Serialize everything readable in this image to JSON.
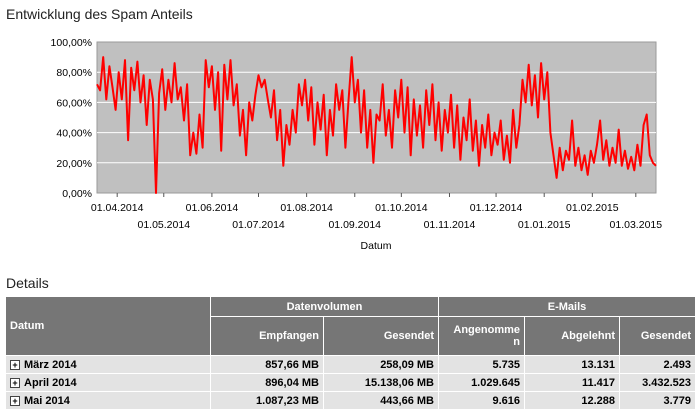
{
  "chart_title": "Entwicklung des Spam Anteils",
  "details_title": "Details",
  "chart_data": {
    "type": "line",
    "title": "Entwicklung des Spam Anteils",
    "xlabel": "Datum",
    "ylabel": "",
    "ylim": [
      0,
      100
    ],
    "y_ticks": [
      "0,00%",
      "20,00%",
      "40,00%",
      "60,00%",
      "80,00%",
      "100,00%"
    ],
    "x_ticks": [
      "01.04.2014",
      "01.05.2014",
      "01.06.2014",
      "01.07.2014",
      "01.08.2014",
      "01.09.2014",
      "01.10.2014",
      "01.11.2014",
      "01.12.2014",
      "01.01.2015",
      "01.02.2015",
      "01.03.2015"
    ],
    "x_range": [
      "2014-03-19",
      "2015-03-14"
    ],
    "grid": true,
    "colors": {
      "line": "#ff0000",
      "plot_bg": "#c0c0c0",
      "grid": "#ffffff"
    },
    "series": [
      {
        "values": [
          [
            "2014-03-19",
            72
          ],
          [
            "2014-03-21",
            68
          ],
          [
            "2014-03-23",
            90
          ],
          [
            "2014-03-25",
            62
          ],
          [
            "2014-03-27",
            84
          ],
          [
            "2014-03-29",
            70
          ],
          [
            "2014-03-31",
            55
          ],
          [
            "2014-04-02",
            80
          ],
          [
            "2014-04-04",
            62
          ],
          [
            "2014-04-06",
            88
          ],
          [
            "2014-04-08",
            35
          ],
          [
            "2014-04-10",
            83
          ],
          [
            "2014-04-12",
            68
          ],
          [
            "2014-04-14",
            87
          ],
          [
            "2014-04-16",
            60
          ],
          [
            "2014-04-18",
            78
          ],
          [
            "2014-04-20",
            45
          ],
          [
            "2014-04-22",
            75
          ],
          [
            "2014-04-24",
            62
          ],
          [
            "2014-04-26",
            0
          ],
          [
            "2014-04-28",
            66
          ],
          [
            "2014-04-30",
            82
          ],
          [
            "2014-05-02",
            55
          ],
          [
            "2014-05-04",
            75
          ],
          [
            "2014-05-06",
            60
          ],
          [
            "2014-05-08",
            86
          ],
          [
            "2014-05-10",
            62
          ],
          [
            "2014-05-12",
            70
          ],
          [
            "2014-05-14",
            48
          ],
          [
            "2014-05-16",
            72
          ],
          [
            "2014-05-18",
            25
          ],
          [
            "2014-05-20",
            40
          ],
          [
            "2014-05-22",
            26
          ],
          [
            "2014-05-24",
            52
          ],
          [
            "2014-05-26",
            30
          ],
          [
            "2014-05-28",
            88
          ],
          [
            "2014-05-30",
            70
          ],
          [
            "2014-06-01",
            84
          ],
          [
            "2014-06-03",
            55
          ],
          [
            "2014-06-05",
            80
          ],
          [
            "2014-06-07",
            28
          ],
          [
            "2014-06-09",
            85
          ],
          [
            "2014-06-11",
            62
          ],
          [
            "2014-06-13",
            88
          ],
          [
            "2014-06-15",
            58
          ],
          [
            "2014-06-17",
            72
          ],
          [
            "2014-06-19",
            38
          ],
          [
            "2014-06-21",
            55
          ],
          [
            "2014-06-23",
            25
          ],
          [
            "2014-06-25",
            60
          ],
          [
            "2014-06-27",
            48
          ],
          [
            "2014-06-29",
            65
          ],
          [
            "2014-07-01",
            78
          ],
          [
            "2014-07-03",
            70
          ],
          [
            "2014-07-05",
            75
          ],
          [
            "2014-07-07",
            62
          ],
          [
            "2014-07-09",
            50
          ],
          [
            "2014-07-11",
            68
          ],
          [
            "2014-07-13",
            35
          ],
          [
            "2014-07-15",
            55
          ],
          [
            "2014-07-17",
            18
          ],
          [
            "2014-07-19",
            45
          ],
          [
            "2014-07-21",
            32
          ],
          [
            "2014-07-23",
            55
          ],
          [
            "2014-07-25",
            40
          ],
          [
            "2014-07-27",
            72
          ],
          [
            "2014-07-29",
            58
          ],
          [
            "2014-07-31",
            75
          ],
          [
            "2014-08-02",
            48
          ],
          [
            "2014-08-04",
            70
          ],
          [
            "2014-08-06",
            32
          ],
          [
            "2014-08-08",
            60
          ],
          [
            "2014-08-10",
            42
          ],
          [
            "2014-08-12",
            65
          ],
          [
            "2014-08-14",
            25
          ],
          [
            "2014-08-16",
            55
          ],
          [
            "2014-08-18",
            38
          ],
          [
            "2014-08-20",
            72
          ],
          [
            "2014-08-22",
            55
          ],
          [
            "2014-08-24",
            68
          ],
          [
            "2014-08-26",
            30
          ],
          [
            "2014-08-28",
            62
          ],
          [
            "2014-08-30",
            90
          ],
          [
            "2014-09-01",
            60
          ],
          [
            "2014-09-03",
            75
          ],
          [
            "2014-09-05",
            40
          ],
          [
            "2014-09-07",
            68
          ],
          [
            "2014-09-09",
            30
          ],
          [
            "2014-09-11",
            55
          ],
          [
            "2014-09-13",
            20
          ],
          [
            "2014-09-15",
            52
          ],
          [
            "2014-09-17",
            48
          ],
          [
            "2014-09-19",
            72
          ],
          [
            "2014-09-21",
            38
          ],
          [
            "2014-09-23",
            55
          ],
          [
            "2014-09-25",
            30
          ],
          [
            "2014-09-27",
            68
          ],
          [
            "2014-09-29",
            50
          ],
          [
            "2014-10-01",
            75
          ],
          [
            "2014-10-03",
            40
          ],
          [
            "2014-10-05",
            70
          ],
          [
            "2014-10-07",
            25
          ],
          [
            "2014-10-09",
            62
          ],
          [
            "2014-10-11",
            38
          ],
          [
            "2014-10-13",
            58
          ],
          [
            "2014-10-15",
            30
          ],
          [
            "2014-10-17",
            68
          ],
          [
            "2014-10-19",
            45
          ],
          [
            "2014-10-21",
            72
          ],
          [
            "2014-10-23",
            35
          ],
          [
            "2014-10-25",
            60
          ],
          [
            "2014-10-27",
            28
          ],
          [
            "2014-10-29",
            55
          ],
          [
            "2014-10-31",
            40
          ],
          [
            "2014-11-02",
            65
          ],
          [
            "2014-11-04",
            30
          ],
          [
            "2014-11-06",
            58
          ],
          [
            "2014-11-08",
            22
          ],
          [
            "2014-11-10",
            50
          ],
          [
            "2014-11-12",
            35
          ],
          [
            "2014-11-14",
            62
          ],
          [
            "2014-11-16",
            28
          ],
          [
            "2014-11-18",
            48
          ],
          [
            "2014-11-20",
            18
          ],
          [
            "2014-11-22",
            45
          ],
          [
            "2014-11-24",
            30
          ],
          [
            "2014-11-26",
            52
          ],
          [
            "2014-11-28",
            25
          ],
          [
            "2014-11-30",
            40
          ],
          [
            "2014-12-02",
            32
          ],
          [
            "2014-12-04",
            48
          ],
          [
            "2014-12-06",
            22
          ],
          [
            "2014-12-08",
            38
          ],
          [
            "2014-12-10",
            20
          ],
          [
            "2014-12-12",
            55
          ],
          [
            "2014-12-14",
            30
          ],
          [
            "2014-12-16",
            45
          ],
          [
            "2014-12-18",
            75
          ],
          [
            "2014-12-20",
            60
          ],
          [
            "2014-12-22",
            85
          ],
          [
            "2014-12-24",
            58
          ],
          [
            "2014-12-26",
            78
          ],
          [
            "2014-12-28",
            50
          ],
          [
            "2014-12-30",
            86
          ],
          [
            "2015-01-01",
            62
          ],
          [
            "2015-01-03",
            80
          ],
          [
            "2015-01-05",
            40
          ],
          [
            "2015-01-07",
            25
          ],
          [
            "2015-01-09",
            10
          ],
          [
            "2015-01-11",
            30
          ],
          [
            "2015-01-13",
            15
          ],
          [
            "2015-01-15",
            28
          ],
          [
            "2015-01-17",
            22
          ],
          [
            "2015-01-19",
            48
          ],
          [
            "2015-01-21",
            18
          ],
          [
            "2015-01-23",
            30
          ],
          [
            "2015-01-25",
            15
          ],
          [
            "2015-01-27",
            25
          ],
          [
            "2015-01-29",
            12
          ],
          [
            "2015-01-31",
            28
          ],
          [
            "2015-02-02",
            20
          ],
          [
            "2015-02-04",
            32
          ],
          [
            "2015-02-06",
            48
          ],
          [
            "2015-02-08",
            22
          ],
          [
            "2015-02-10",
            35
          ],
          [
            "2015-02-12",
            18
          ],
          [
            "2015-02-14",
            30
          ],
          [
            "2015-02-16",
            20
          ],
          [
            "2015-02-18",
            42
          ],
          [
            "2015-02-20",
            18
          ],
          [
            "2015-02-22",
            28
          ],
          [
            "2015-02-24",
            16
          ],
          [
            "2015-02-26",
            24
          ],
          [
            "2015-02-28",
            15
          ],
          [
            "2015-03-02",
            32
          ],
          [
            "2015-03-04",
            18
          ],
          [
            "2015-03-06",
            45
          ],
          [
            "2015-03-08",
            52
          ],
          [
            "2015-03-10",
            25
          ],
          [
            "2015-03-12",
            20
          ],
          [
            "2015-03-14",
            18
          ]
        ]
      }
    ]
  },
  "table": {
    "group_headers": {
      "volume": "Datenvolumen",
      "mails": "E-Mails"
    },
    "columns": [
      "Datum",
      "Empfangen",
      "Gesendet",
      "Angenomme\nn",
      "Abgelehnt",
      "Gesendet"
    ],
    "expander_symbol": "+",
    "rows": [
      {
        "datum": "März 2014",
        "empfangen": "857,66 MB",
        "gesendet_vol": "258,09 MB",
        "angenommen": "5.735",
        "abgelehnt": "13.131",
        "gesendet_mails": "2.493"
      },
      {
        "datum": "April 2014",
        "empfangen": "896,04 MB",
        "gesendet_vol": "15.138,06 MB",
        "angenommen": "1.029.645",
        "abgelehnt": "11.417",
        "gesendet_mails": "3.432.523"
      },
      {
        "datum": "Mai 2014",
        "empfangen": "1.087,23 MB",
        "gesendet_vol": "443,66 MB",
        "angenommen": "9.616",
        "abgelehnt": "12.288",
        "gesendet_mails": "3.779"
      }
    ]
  }
}
